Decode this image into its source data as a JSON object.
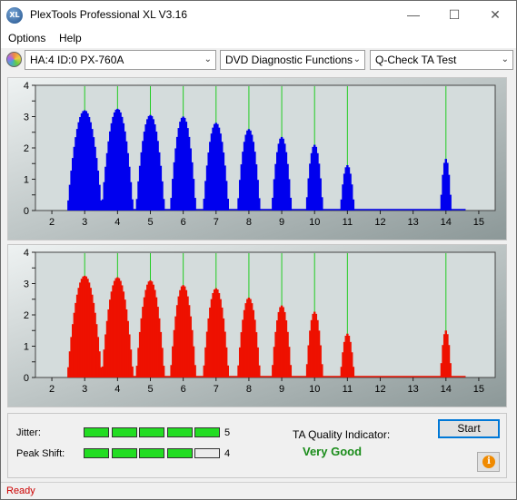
{
  "window": {
    "title": "PlexTools Professional XL V3.16",
    "icon_text": "XL"
  },
  "menu": {
    "options": "Options",
    "help": "Help"
  },
  "toolbar": {
    "drive": "HA:4 ID:0  PX-760A",
    "function": "DVD Diagnostic Functions",
    "test": "Q-Check TA Test"
  },
  "colors": {
    "top_bars": "#0000ee",
    "bottom_bars": "#ee1100",
    "marker_lines": "#22cc22",
    "quality": "#1a8c1a"
  },
  "chart_data": [
    {
      "type": "bar",
      "y_ticks": [
        "0",
        "0.5",
        "1",
        "1.5",
        "2",
        "2.5",
        "3",
        "3.5",
        "4"
      ],
      "x_ticks": [
        "2",
        "3",
        "4",
        "5",
        "6",
        "7",
        "8",
        "9",
        "10",
        "11",
        "12",
        "13",
        "14",
        "15"
      ],
      "xlim": [
        1.5,
        15.5
      ],
      "ylim": [
        0,
        4
      ],
      "markers": [
        3,
        4,
        5,
        6,
        7,
        8,
        9,
        10,
        11,
        14
      ],
      "peaks": [
        {
          "center": 3,
          "height": 3.2,
          "width": 0.5
        },
        {
          "center": 4,
          "height": 3.25,
          "width": 0.45
        },
        {
          "center": 5,
          "height": 3.05,
          "width": 0.42
        },
        {
          "center": 6,
          "height": 3.0,
          "width": 0.38
        },
        {
          "center": 7,
          "height": 2.8,
          "width": 0.34
        },
        {
          "center": 8,
          "height": 2.6,
          "width": 0.3
        },
        {
          "center": 9,
          "height": 2.35,
          "width": 0.27
        },
        {
          "center": 10,
          "height": 2.1,
          "width": 0.22
        },
        {
          "center": 11,
          "height": 1.45,
          "width": 0.18
        },
        {
          "center": 14,
          "height": 1.65,
          "width": 0.15
        }
      ]
    },
    {
      "type": "bar",
      "y_ticks": [
        "0",
        "0.5",
        "1",
        "1.5",
        "2",
        "2.5",
        "3",
        "3.5",
        "4"
      ],
      "x_ticks": [
        "2",
        "3",
        "4",
        "5",
        "6",
        "7",
        "8",
        "9",
        "10",
        "11",
        "12",
        "13",
        "14",
        "15"
      ],
      "xlim": [
        1.5,
        15.5
      ],
      "ylim": [
        0,
        4
      ],
      "markers": [
        3,
        4,
        5,
        6,
        7,
        8,
        9,
        10,
        11,
        14
      ],
      "peaks": [
        {
          "center": 3,
          "height": 3.25,
          "width": 0.5
        },
        {
          "center": 4,
          "height": 3.2,
          "width": 0.45
        },
        {
          "center": 5,
          "height": 3.1,
          "width": 0.42
        },
        {
          "center": 6,
          "height": 2.95,
          "width": 0.38
        },
        {
          "center": 7,
          "height": 2.85,
          "width": 0.34
        },
        {
          "center": 8,
          "height": 2.55,
          "width": 0.3
        },
        {
          "center": 9,
          "height": 2.3,
          "width": 0.27
        },
        {
          "center": 10,
          "height": 2.1,
          "width": 0.22
        },
        {
          "center": 11,
          "height": 1.4,
          "width": 0.18
        },
        {
          "center": 14,
          "height": 1.5,
          "width": 0.15
        }
      ]
    }
  ],
  "results": {
    "jitter_label": "Jitter:",
    "jitter_value": "5",
    "jitter_level": 5,
    "peak_label": "Peak Shift:",
    "peak_value": "4",
    "peak_level": 4,
    "ta_label": "TA Quality Indicator:",
    "ta_value": "Very Good",
    "start_label": "Start",
    "info_glyph": "i"
  },
  "status": {
    "text": "Ready"
  }
}
